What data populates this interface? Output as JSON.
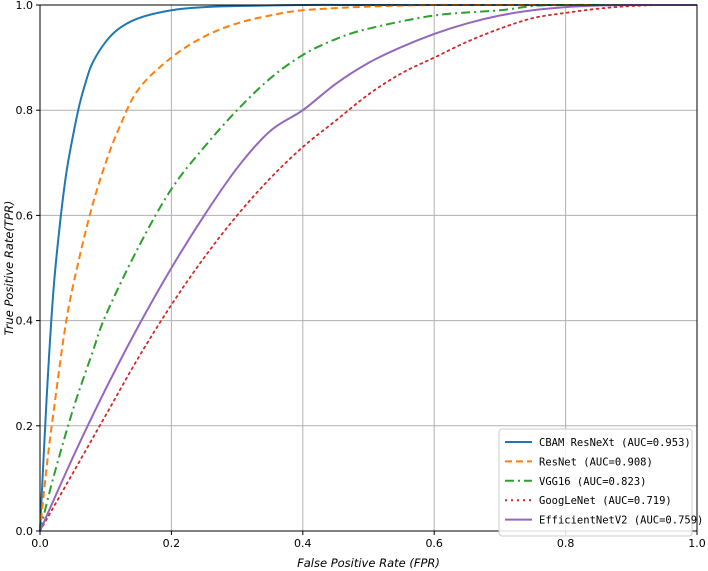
{
  "chart_data": {
    "type": "line",
    "title": "",
    "xlabel": "False Positive Rate (FPR)",
    "ylabel": "True Positive Rate(TPR)",
    "xlim": [
      0.0,
      1.0
    ],
    "ylim": [
      0.0,
      1.0
    ],
    "xticks": [
      "0.0",
      "0.2",
      "0.4",
      "0.6",
      "0.8",
      "1.0"
    ],
    "yticks": [
      "0.0",
      "0.2",
      "0.4",
      "0.6",
      "0.8",
      "1.0"
    ],
    "grid": true,
    "legend_position": "lower-right",
    "series": [
      {
        "name": "CBAM ResNeXt (AUC=0.953)",
        "color": "#1f77b4",
        "linestyle": "solid",
        "x": [
          0,
          0.01,
          0.02,
          0.03,
          0.04,
          0.05,
          0.06,
          0.07,
          0.08,
          0.1,
          0.12,
          0.15,
          0.2,
          0.25,
          0.3,
          0.4,
          0.5,
          0.6,
          0.8,
          1.0
        ],
        "y": [
          0,
          0.25,
          0.45,
          0.58,
          0.68,
          0.75,
          0.81,
          0.855,
          0.89,
          0.93,
          0.955,
          0.975,
          0.99,
          0.996,
          0.998,
          1.0,
          1.0,
          1.0,
          1.0,
          1.0
        ]
      },
      {
        "name": "ResNet (AUC=0.908)",
        "color": "#ff7f0e",
        "linestyle": "dashed",
        "x": [
          0,
          0.01,
          0.02,
          0.04,
          0.06,
          0.08,
          0.1,
          0.12,
          0.15,
          0.2,
          0.25,
          0.3,
          0.35,
          0.4,
          0.5,
          0.6,
          0.7,
          0.8,
          1.0
        ],
        "y": [
          0,
          0.12,
          0.22,
          0.4,
          0.52,
          0.62,
          0.7,
          0.765,
          0.84,
          0.9,
          0.94,
          0.965,
          0.98,
          0.99,
          0.997,
          1.0,
          1.0,
          1.0,
          1.0
        ]
      },
      {
        "name": "VGG16 (AUC=0.823)",
        "color": "#2ca02c",
        "linestyle": "dashdot",
        "x": [
          0,
          0.02,
          0.05,
          0.08,
          0.1,
          0.15,
          0.2,
          0.25,
          0.3,
          0.35,
          0.4,
          0.45,
          0.5,
          0.6,
          0.7,
          0.75,
          0.8,
          0.9,
          1.0
        ],
        "y": [
          0,
          0.1,
          0.23,
          0.34,
          0.41,
          0.54,
          0.65,
          0.73,
          0.8,
          0.86,
          0.905,
          0.935,
          0.955,
          0.98,
          0.99,
          0.998,
          1.0,
          1.0,
          1.0
        ]
      },
      {
        "name": "GoogLeNet (AUC=0.719)",
        "color": "#d62728",
        "linestyle": "dotted",
        "x": [
          0,
          0.05,
          0.1,
          0.15,
          0.2,
          0.25,
          0.3,
          0.35,
          0.4,
          0.45,
          0.5,
          0.55,
          0.6,
          0.65,
          0.7,
          0.75,
          0.8,
          0.85,
          0.9,
          0.95,
          1.0
        ],
        "y": [
          0,
          0.11,
          0.22,
          0.33,
          0.43,
          0.52,
          0.6,
          0.67,
          0.73,
          0.78,
          0.83,
          0.87,
          0.9,
          0.93,
          0.955,
          0.975,
          0.985,
          0.993,
          0.998,
          1.0,
          1.0
        ]
      },
      {
        "name": "EfficientNetV2 (AUC=0.759)",
        "color": "#9467bd",
        "linestyle": "solid",
        "x": [
          0,
          0.05,
          0.1,
          0.15,
          0.2,
          0.25,
          0.3,
          0.35,
          0.4,
          0.45,
          0.5,
          0.55,
          0.6,
          0.65,
          0.7,
          0.75,
          0.8,
          0.85,
          0.9,
          1.0
        ],
        "y": [
          0,
          0.14,
          0.27,
          0.39,
          0.5,
          0.6,
          0.69,
          0.76,
          0.8,
          0.85,
          0.89,
          0.92,
          0.945,
          0.965,
          0.98,
          0.99,
          0.996,
          0.999,
          1.0,
          1.0
        ]
      }
    ]
  }
}
